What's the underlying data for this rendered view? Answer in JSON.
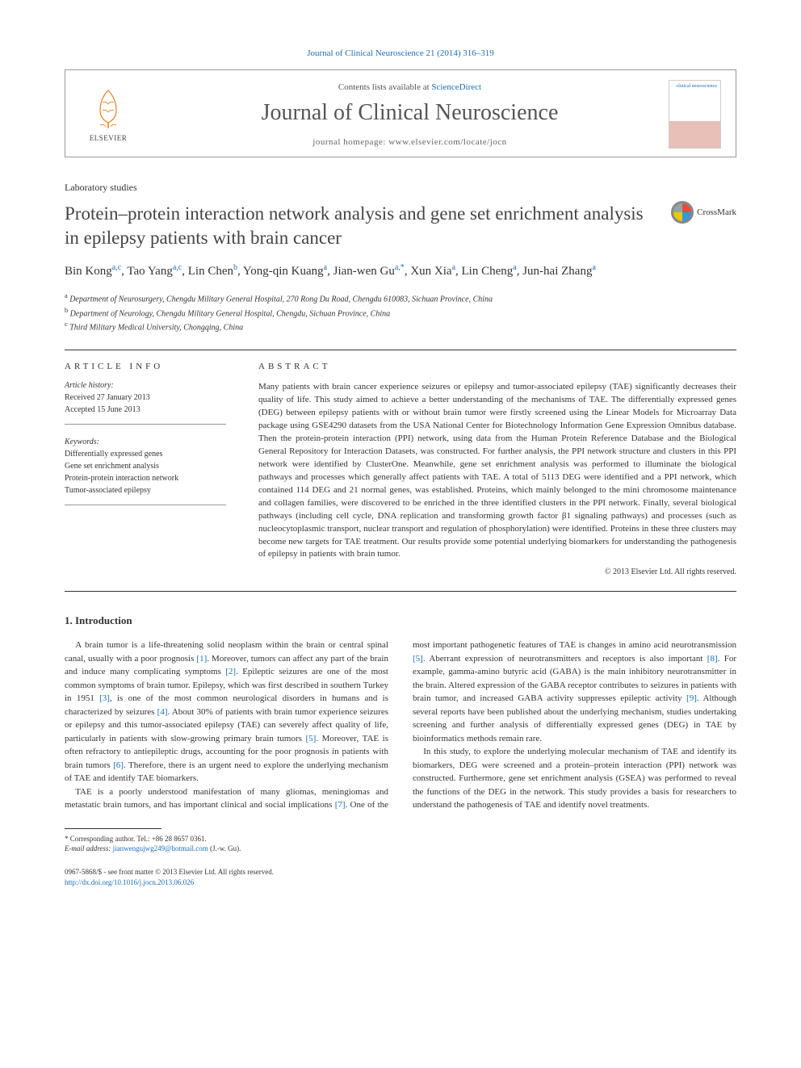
{
  "top_reference": "Journal of Clinical Neuroscience 21 (2014) 316–319",
  "header": {
    "contents_prefix": "Contents lists available at ",
    "contents_link": "ScienceDirect",
    "journal_title": "Journal of Clinical Neuroscience",
    "homepage_label": "journal homepage: www.elsevier.com/locate/jocn",
    "publisher": "ELSEVIER",
    "cover_label": "clinical neuroscience"
  },
  "section_label": "Laboratory studies",
  "title": "Protein–protein interaction network analysis and gene set enrichment analysis in epilepsy patients with brain cancer",
  "crossmark": "CrossMark",
  "authors_html": "Bin Kong<sup>a,c</sup>, Tao Yang<sup>a,c</sup>, Lin Chen<sup>b</sup>, Yong-qin Kuang<sup>a</sup>, Jian-wen Gu<sup>a,*</sup>, Xun Xia<sup>a</sup>, Lin Cheng<sup>a</sup>, Jun-hai Zhang<sup>a</sup>",
  "affiliations": [
    "a Department of Neurosurgery, Chengdu Military General Hospital, 270 Rong Du Road, Chengdu 610083, Sichuan Province, China",
    "b Department of Neurology, Chengdu Military General Hospital, Chengdu, Sichuan Province, China",
    "c Third Military Medical University, Chongqing, China"
  ],
  "article_info": {
    "heading": "ARTICLE INFO",
    "history_label": "Article history:",
    "received": "Received 27 January 2013",
    "accepted": "Accepted 15 June 2013",
    "keywords_label": "Keywords:",
    "keywords": [
      "Differentially expressed genes",
      "Gene set enrichment analysis",
      "Protein-protein interaction network",
      "Tumor-associated epilepsy"
    ]
  },
  "abstract": {
    "heading": "ABSTRACT",
    "text": "Many patients with brain cancer experience seizures or epilepsy and tumor-associated epilepsy (TAE) significantly decreases their quality of life. This study aimed to achieve a better understanding of the mechanisms of TAE. The differentially expressed genes (DEG) between epilepsy patients with or without brain tumor were firstly screened using the Linear Models for Microarray Data package using GSE4290 datasets from the USA National Center for Biotechnology Information Gene Expression Omnibus database. Then the protein-protein interaction (PPI) network, using data from the Human Protein Reference Database and the Biological General Repository for Interaction Datasets, was constructed. For further analysis, the PPI network structure and clusters in this PPI network were identified by ClusterOne. Meanwhile, gene set enrichment analysis was performed to illuminate the biological pathways and processes which generally affect patients with TAE. A total of 5113 DEG were identified and a PPI network, which contained 114 DEG and 21 normal genes, was established. Proteins, which mainly belonged to the mini chromosome maintenance and collagen families, were discovered to be enriched in the three identified clusters in the PPI network. Finally, several biological pathways (including cell cycle, DNA replication and transforming growth factor β1 signaling pathways) and processes (such as nucleocytoplasmic transport, nuclear transport and regulation of phosphorylation) were identified. Proteins in these three clusters may become new targets for TAE treatment. Our results provide some potential underlying biomarkers for understanding the pathogenesis of epilepsy in patients with brain tumor.",
    "copyright": "© 2013 Elsevier Ltd. All rights reserved."
  },
  "intro": {
    "heading": "1. Introduction",
    "paragraphs": [
      "A brain tumor is a life-threatening solid neoplasm within the brain or central spinal canal, usually with a poor prognosis [1]. Moreover, tumors can affect any part of the brain and induce many complicating symptoms [2]. Epileptic seizures are one of the most common symptoms of brain tumor. Epilepsy, which was first described in southern Turkey in 1951 [3], is one of the most common neurological disorders in humans and is characterized by seizures [4]. About 30% of patients with brain tumor experience seizures or epilepsy and this tumor-associated epilepsy (TAE) can severely affect quality of life, particularly in patients with slow-growing primary brain tumors [5]. Moreover, TAE is often refractory to antiepileptic drugs, accounting for the poor prognosis in patients with brain tumors [6]. Therefore, there is an urgent need to explore the underlying mechanism of TAE and identify TAE biomarkers.",
      "TAE is a poorly understood manifestation of many gliomas, meningiomas and metastatic brain tumors, and has important clinical and social implications [7]. One of the most important pathogenetic features of TAE is changes in amino acid neurotransmission [5]. Aberrant expression of neurotransmitters and receptors is also important [8]. For example, gamma-amino butyric acid (GABA) is the main inhibitory neurotransmitter in the brain. Altered expression of the GABA receptor contributes to seizures in patients with brain tumor, and increased GABA activity suppresses epileptic activity [9]. Although several reports have been published about the underlying mechanism, studies undertaking screening and further analysis of differentially expressed genes (DEG) in TAE by bioinformatics methods remain rare.",
      "In this study, to explore the underlying molecular mechanism of TAE and identify its biomarkers, DEG were screened and a protein–protein interaction (PPI) network was constructed. Furthermore, gene set enrichment analysis (GSEA) was performed to reveal the functions of the DEG in the network. This study provides a basis for researchers to understand the pathogenesis of TAE and identify novel treatments."
    ]
  },
  "footnote": {
    "corresponding": "* Corresponding author. Tel.: +86 28 8657 0361.",
    "email_label": "E-mail address:",
    "email": "jianwengujwg249@hotmail.com",
    "email_who": "(J.-w. Gu)."
  },
  "bottom": {
    "issn": "0967-5868/$ - see front matter © 2013 Elsevier Ltd. All rights reserved.",
    "doi": "http://dx.doi.org/10.1016/j.jocn.2013.06.026"
  },
  "colors": {
    "link": "#1a6eb8",
    "text": "#333333",
    "rule": "#333333"
  }
}
